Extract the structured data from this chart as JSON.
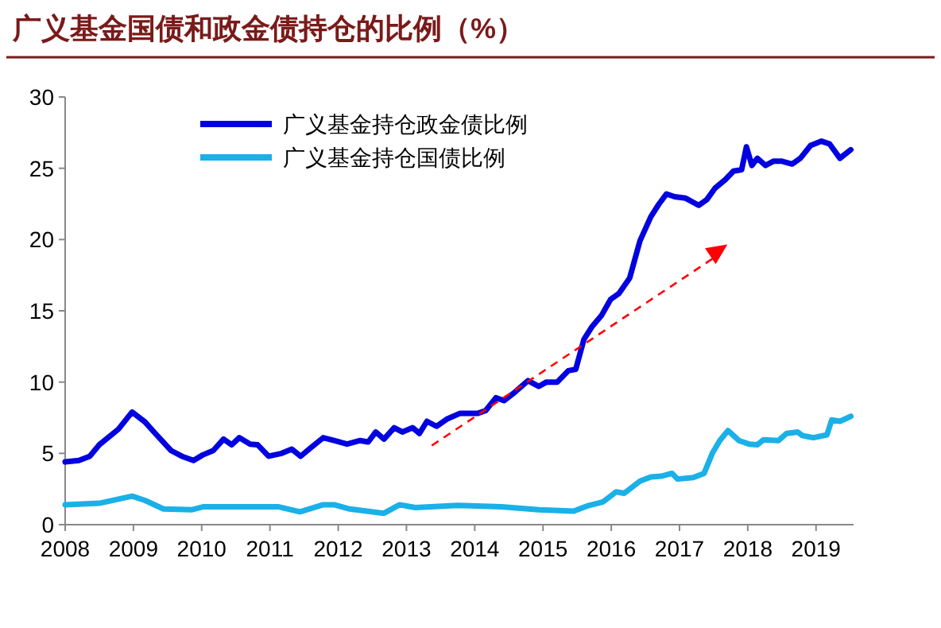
{
  "chart_data": {
    "type": "line",
    "title": "广义基金国债和政金债持仓的比例（%）",
    "xlim": [
      2008,
      2019.55
    ],
    "xticks": [
      2008,
      2009,
      2010,
      2011,
      2012,
      2013,
      2014,
      2015,
      2016,
      2017,
      2018,
      2019
    ],
    "ylim": [
      0,
      30
    ],
    "yticks": [
      0,
      5,
      10,
      15,
      20,
      25,
      30
    ],
    "legend": "top left",
    "grid": false,
    "series": [
      {
        "name": "广义基金持仓政金债比例",
        "color": "#0000e0",
        "x": [
          2008.0,
          2008.2,
          2008.36,
          2008.5,
          2008.78,
          2008.98,
          2009.17,
          2009.32,
          2009.55,
          2009.71,
          2009.88,
          2010.02,
          2010.17,
          2010.32,
          2010.44,
          2010.55,
          2010.71,
          2010.82,
          2010.98,
          2011.17,
          2011.32,
          2011.45,
          2011.6,
          2011.78,
          2011.94,
          2012.13,
          2012.32,
          2012.44,
          2012.55,
          2012.67,
          2012.82,
          2012.94,
          2013.09,
          2013.19,
          2013.3,
          2013.44,
          2013.59,
          2013.78,
          2014.04,
          2014.16,
          2014.31,
          2014.43,
          2014.59,
          2014.78,
          2014.94,
          2015.05,
          2015.21,
          2015.37,
          2015.48,
          2015.6,
          2015.72,
          2015.86,
          2015.99,
          2016.11,
          2016.27,
          2016.42,
          2016.58,
          2016.7,
          2016.81,
          2016.93,
          2017.09,
          2017.28,
          2017.4,
          2017.52,
          2017.67,
          2017.79,
          2017.91,
          2017.98,
          2018.06,
          2018.14,
          2018.26,
          2018.38,
          2018.49,
          2018.65,
          2018.77,
          2018.92,
          2019.08,
          2019.2,
          2019.35,
          2019.51
        ],
        "values": [
          4.4,
          4.5,
          4.8,
          5.6,
          6.7,
          7.9,
          7.2,
          6.4,
          5.2,
          4.8,
          4.5,
          4.9,
          5.2,
          6.0,
          5.6,
          6.1,
          5.65,
          5.6,
          4.8,
          5.0,
          5.3,
          4.8,
          5.4,
          6.1,
          5.9,
          5.65,
          5.9,
          5.8,
          6.5,
          6.0,
          6.8,
          6.5,
          6.8,
          6.4,
          7.25,
          6.9,
          7.4,
          7.8,
          7.8,
          8.0,
          8.9,
          8.7,
          9.3,
          10.1,
          9.7,
          10.0,
          10.0,
          10.8,
          10.9,
          13.0,
          13.9,
          14.7,
          15.8,
          16.2,
          17.3,
          19.9,
          21.6,
          22.5,
          23.2,
          23.0,
          22.9,
          22.4,
          22.8,
          23.6,
          24.2,
          24.8,
          24.9,
          26.5,
          25.2,
          25.7,
          25.2,
          25.5,
          25.5,
          25.3,
          25.7,
          26.6,
          26.9,
          26.7,
          25.7,
          26.3
        ]
      },
      {
        "name": "广义基金持仓国债比例",
        "color": "#1ab0e8",
        "x": [
          2008.0,
          2008.5,
          2008.98,
          2009.17,
          2009.44,
          2009.86,
          2010.02,
          2010.44,
          2011.13,
          2011.44,
          2011.78,
          2011.94,
          2012.17,
          2012.67,
          2012.9,
          2013.13,
          2013.75,
          2014.39,
          2014.94,
          2015.45,
          2015.64,
          2015.88,
          2016.07,
          2016.19,
          2016.42,
          2016.58,
          2016.73,
          2016.89,
          2016.97,
          2017.2,
          2017.36,
          2017.48,
          2017.59,
          2017.71,
          2017.87,
          2018.02,
          2018.14,
          2018.23,
          2018.45,
          2018.57,
          2018.73,
          2018.8,
          2018.96,
          2019.16,
          2019.23,
          2019.35,
          2019.51
        ],
        "values": [
          1.4,
          1.5,
          2.0,
          1.7,
          1.1,
          1.05,
          1.25,
          1.25,
          1.25,
          0.9,
          1.4,
          1.4,
          1.1,
          0.8,
          1.4,
          1.2,
          1.35,
          1.25,
          1.05,
          0.95,
          1.3,
          1.6,
          2.3,
          2.2,
          3.05,
          3.35,
          3.4,
          3.6,
          3.2,
          3.3,
          3.6,
          5.0,
          5.9,
          6.6,
          5.9,
          5.65,
          5.6,
          5.95,
          5.9,
          6.4,
          6.5,
          6.25,
          6.1,
          6.3,
          7.35,
          7.25,
          7.6
        ]
      }
    ]
  }
}
